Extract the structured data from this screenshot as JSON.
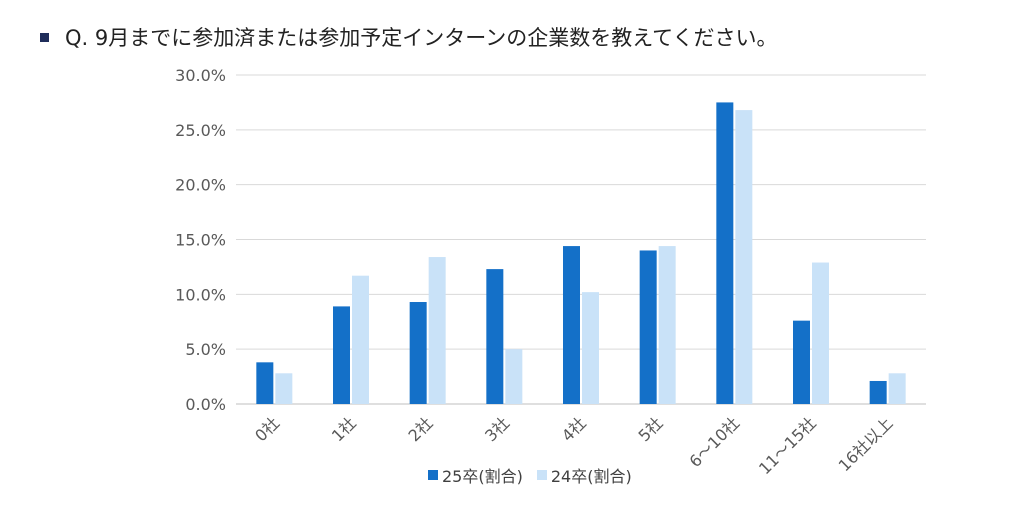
{
  "question": "Q. 9月までに参加済または参加予定インターンの企業数を教えてください。",
  "colors": {
    "series1": "#1470c8",
    "series2": "#c9e2f8",
    "bullet": "#1f2d5a",
    "grid": "#d9d9d9"
  },
  "chart_data": {
    "type": "bar",
    "categories": [
      "0社",
      "1社",
      "2社",
      "3社",
      "4社",
      "5社",
      "6～10社",
      "11～15社",
      "16社以上"
    ],
    "series": [
      {
        "name": "25卒(割合)",
        "values": [
          3.8,
          8.9,
          9.3,
          12.3,
          14.4,
          14.0,
          27.5,
          7.6,
          2.1
        ]
      },
      {
        "name": "24卒(割合)",
        "values": [
          2.8,
          11.7,
          13.4,
          5.0,
          10.2,
          14.4,
          26.8,
          12.9,
          2.8
        ]
      }
    ],
    "yticks": [
      "0.0%",
      "5.0%",
      "10.0%",
      "15.0%",
      "20.0%",
      "25.0%",
      "30.0%"
    ],
    "ylim": [
      0,
      30
    ],
    "grid": true,
    "legend": "bottom"
  }
}
